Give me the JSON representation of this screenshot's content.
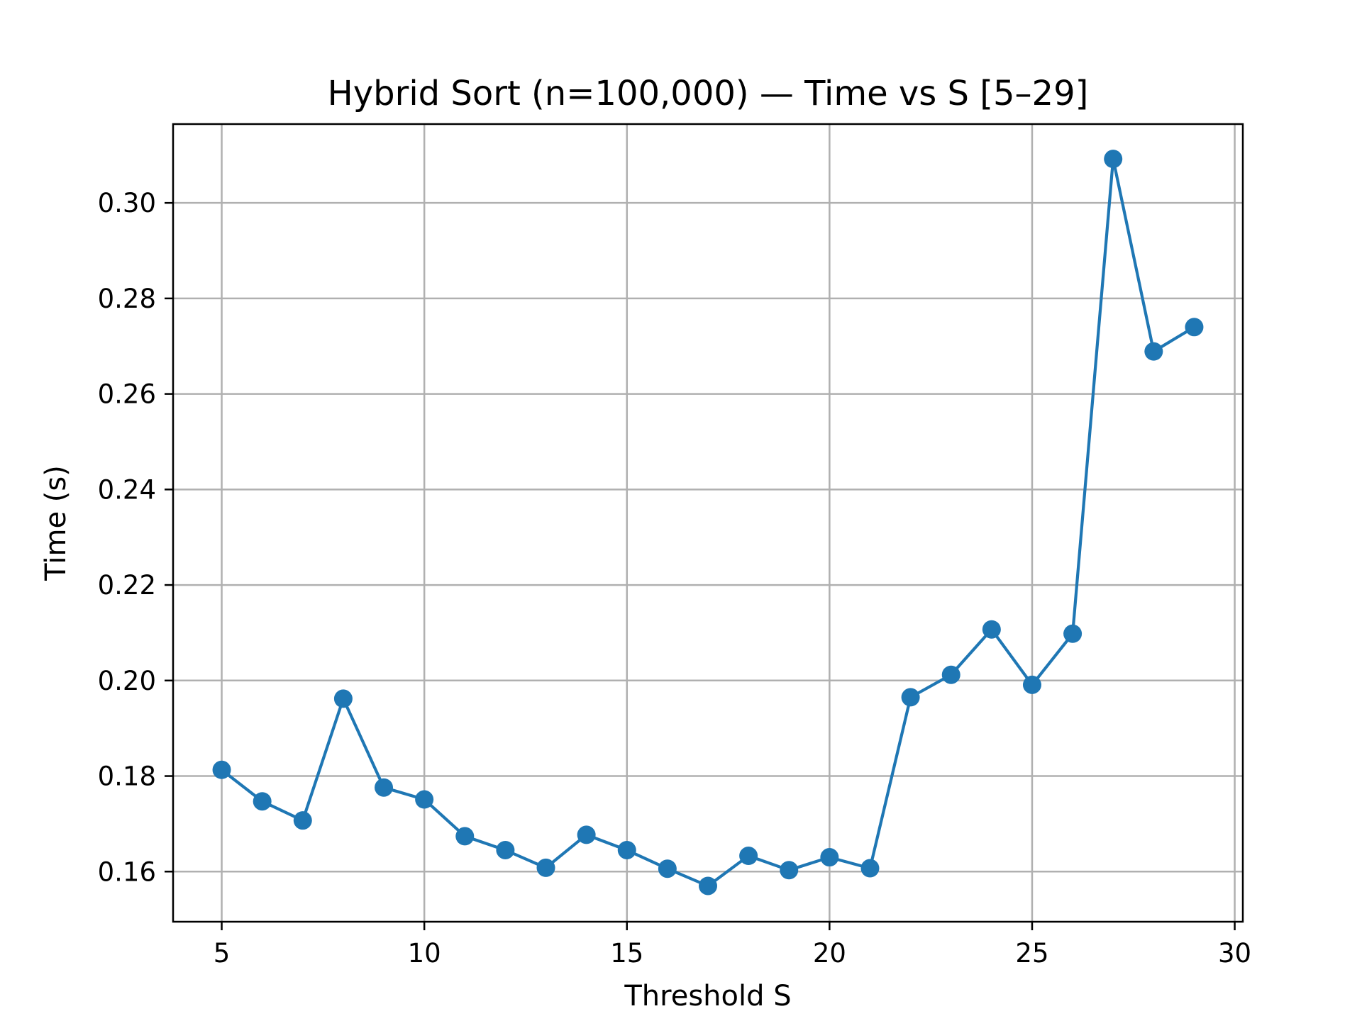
{
  "chart_data": {
    "type": "line",
    "title": "Hybrid Sort (n=100,000) — Time vs S [5–29]",
    "xlabel": "Threshold S",
    "ylabel": "Time (s)",
    "xlim": [
      3.8,
      30.2
    ],
    "ylim": [
      0.1495,
      0.3165
    ],
    "xticks": [
      5,
      10,
      15,
      20,
      25,
      30
    ],
    "xtick_labels": [
      "5",
      "10",
      "15",
      "20",
      "25",
      "30"
    ],
    "yticks": [
      0.16,
      0.18,
      0.2,
      0.22,
      0.24,
      0.26,
      0.28,
      0.3
    ],
    "ytick_labels": [
      "0.16",
      "0.18",
      "0.20",
      "0.22",
      "0.24",
      "0.26",
      "0.28",
      "0.30"
    ],
    "grid": true,
    "series": [
      {
        "color": "#1f77b4",
        "marker": "circle",
        "x": [
          5,
          6,
          7,
          8,
          9,
          10,
          11,
          12,
          13,
          14,
          15,
          16,
          17,
          18,
          19,
          20,
          21,
          22,
          23,
          24,
          25,
          26,
          27,
          28,
          29
        ],
        "y": [
          0.1813,
          0.1747,
          0.1707,
          0.1962,
          0.1776,
          0.1751,
          0.1674,
          0.1645,
          0.1608,
          0.1677,
          0.1645,
          0.1606,
          0.157,
          0.1633,
          0.1603,
          0.163,
          0.1607,
          0.1965,
          0.2012,
          0.2107,
          0.1991,
          0.2098,
          0.3092,
          0.2689,
          0.274
        ]
      }
    ]
  }
}
